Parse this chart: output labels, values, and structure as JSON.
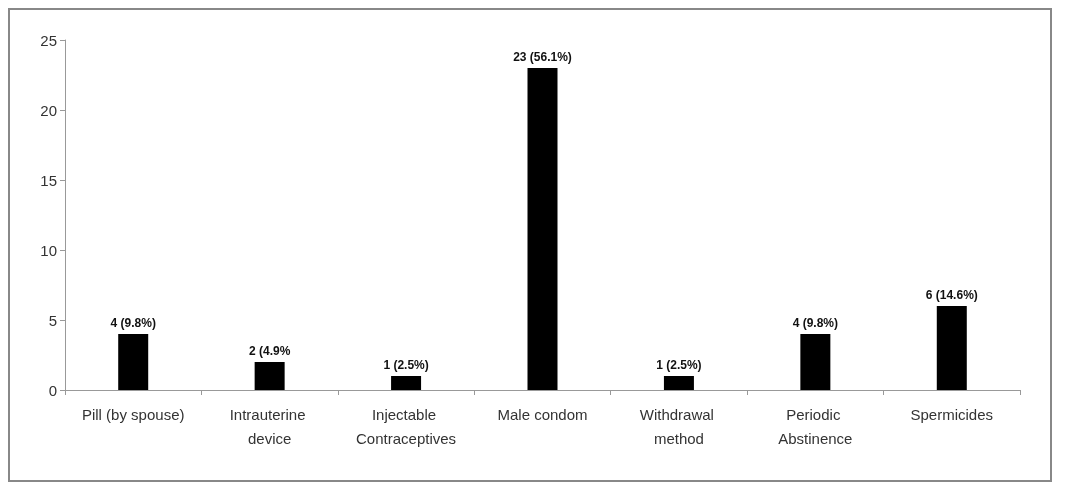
{
  "chart_data": {
    "type": "bar",
    "categories": [
      "Pill (by spouse)",
      "Intrauterine device",
      "Injectable Contraceptives",
      "Male condom",
      "Withdrawal method",
      "Periodic Abstinence",
      "Spermicides"
    ],
    "values": [
      4,
      2,
      1,
      23,
      1,
      4,
      6
    ],
    "value_labels": [
      "4 (9.8%)",
      "2 (4.9%",
      "1 (2.5%)",
      "23 (56.1%)",
      "1 (2.5%)",
      "4 (9.8%)",
      "6 (14.6%)"
    ],
    "color": "#000000",
    "ylim": [
      0,
      25
    ],
    "yticks": [
      0,
      5,
      10,
      15,
      20,
      25
    ],
    "grid": false
  }
}
